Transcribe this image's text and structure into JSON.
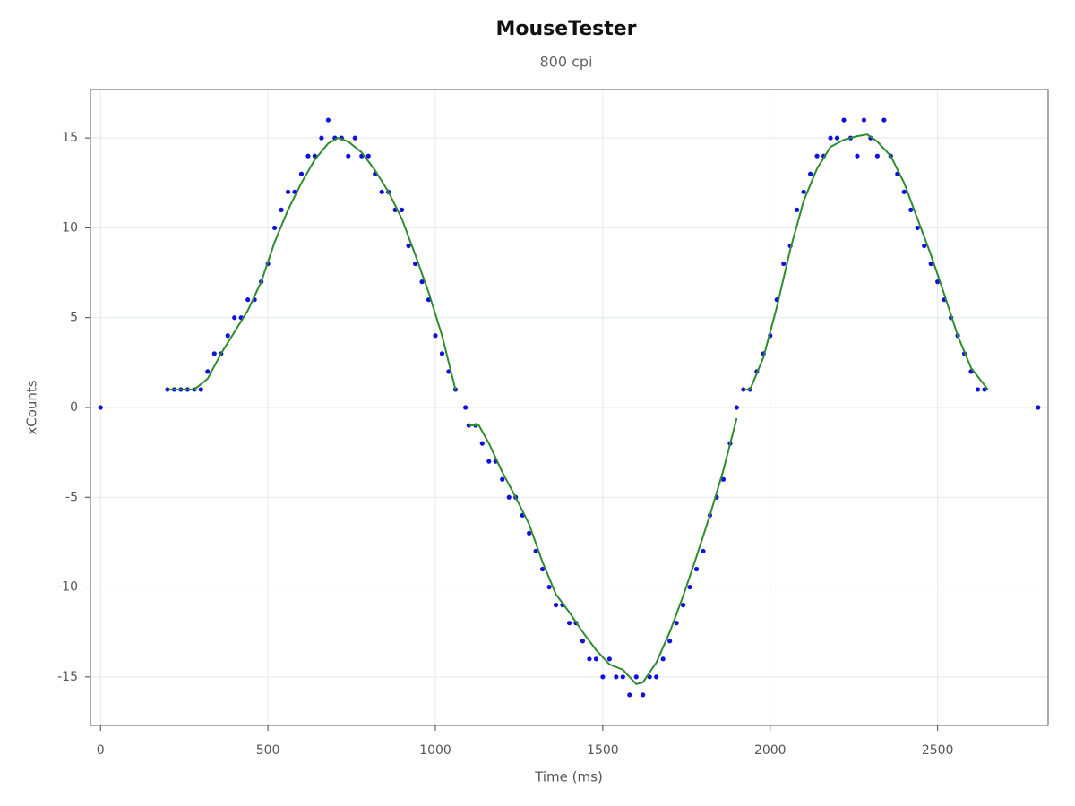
{
  "chart_data": {
    "type": "scatter",
    "title": "MouseTester",
    "subtitle": "800 cpi",
    "x_label": "Time (ms)",
    "y_label": "xCounts",
    "xlim": [
      -30,
      2830
    ],
    "ylim": [
      -17.7,
      17.7
    ],
    "xticks": [
      0,
      500,
      1000,
      1500,
      2000,
      2500
    ],
    "yticks": [
      -15,
      -10,
      -5,
      0,
      5,
      10,
      15
    ],
    "grid": true,
    "series": [
      {
        "type": "scatter",
        "color": "#1010e0",
        "x": [
          0,
          200,
          220,
          240,
          260,
          280,
          300,
          320,
          340,
          360,
          380,
          400,
          420,
          440,
          460,
          480,
          500,
          520,
          540,
          560,
          580,
          600,
          620,
          640,
          660,
          680,
          700,
          720,
          740,
          760,
          780,
          800,
          820,
          840,
          860,
          880,
          900,
          920,
          940,
          960,
          980,
          1000,
          1020,
          1040,
          1060,
          1090,
          1100,
          1120,
          1140,
          1160,
          1180,
          1200,
          1220,
          1240,
          1260,
          1280,
          1300,
          1320,
          1340,
          1360,
          1380,
          1400,
          1420,
          1440,
          1460,
          1480,
          1500,
          1520,
          1540,
          1560,
          1580,
          1600,
          1620,
          1640,
          1660,
          1680,
          1700,
          1720,
          1740,
          1760,
          1780,
          1800,
          1820,
          1840,
          1860,
          1880,
          1900,
          1920,
          1940,
          1960,
          1980,
          2000,
          2020,
          2040,
          2060,
          2080,
          2100,
          2120,
          2140,
          2160,
          2180,
          2200,
          2220,
          2240,
          2260,
          2280,
          2300,
          2320,
          2340,
          2360,
          2380,
          2400,
          2420,
          2440,
          2460,
          2480,
          2500,
          2520,
          2540,
          2560,
          2580,
          2600,
          2620,
          2640,
          2800
        ],
        "values": [
          0,
          1,
          1,
          1,
          1,
          1,
          1,
          2,
          3,
          3,
          4,
          5,
          5,
          6,
          6,
          7,
          8,
          10,
          11,
          12,
          12,
          13,
          14,
          14,
          15,
          16,
          15,
          15,
          14,
          15,
          14,
          14,
          13,
          12,
          12,
          11,
          11,
          9,
          8,
          7,
          6,
          4,
          3,
          2,
          1,
          0,
          -1,
          -1,
          -2,
          -3,
          -3,
          -4,
          -5,
          -5,
          -6,
          -7,
          -8,
          -9,
          -10,
          -11,
          -11,
          -12,
          -12,
          -13,
          -14,
          -14,
          -15,
          -14,
          -15,
          -15,
          -16,
          -15,
          -16,
          -15,
          -15,
          -14,
          -13,
          -12,
          -11,
          -10,
          -9,
          -8,
          -6,
          -5,
          -4,
          -2,
          0,
          1,
          1,
          2,
          3,
          4,
          6,
          8,
          9,
          11,
          12,
          13,
          14,
          14,
          15,
          15,
          16,
          15,
          14,
          16,
          15,
          14,
          16,
          14,
          13,
          12,
          11,
          10,
          9,
          8,
          7,
          6,
          5,
          4,
          3,
          2,
          1,
          1,
          0
        ]
      },
      {
        "type": "line",
        "color": "#2e8b2e",
        "x": [
          200,
          240,
          280,
          320,
          360,
          400,
          440,
          480,
          520,
          560,
          600,
          640,
          680,
          710,
          740,
          780,
          820,
          860,
          900,
          940,
          980,
          1020,
          1060,
          null,
          1100,
          1130,
          1160,
          1200,
          1240,
          1280,
          1320,
          1360,
          1400,
          1440,
          1480,
          1520,
          1560,
          1600,
          1620,
          1660,
          1700,
          1740,
          1780,
          1820,
          1860,
          1900,
          null,
          1920,
          1940,
          1980,
          2020,
          2060,
          2100,
          2140,
          2180,
          2220,
          2260,
          2290,
          2320,
          2360,
          2400,
          2440,
          2480,
          2520,
          2560,
          2600,
          2650
        ],
        "values": [
          1,
          1,
          1,
          1.6,
          3,
          4.2,
          5.4,
          7,
          9.2,
          11,
          12.5,
          13.8,
          14.7,
          15,
          14.8,
          14.2,
          13.2,
          12,
          10.5,
          8.5,
          6.4,
          4,
          1,
          null,
          -1,
          -1,
          -2,
          -3.6,
          -5,
          -6.5,
          -8.6,
          -10.4,
          -11.4,
          -12.5,
          -13.5,
          -14.3,
          -14.6,
          -15.4,
          -15.3,
          -14.2,
          -12.5,
          -10.5,
          -8.3,
          -6,
          -3.5,
          -0.6,
          null,
          1,
          1,
          2.8,
          5.6,
          8.8,
          11.5,
          13.3,
          14.5,
          14.9,
          15.1,
          15.2,
          14.8,
          14,
          12.5,
          10.5,
          8.5,
          6.3,
          4,
          2.2,
          1
        ]
      }
    ]
  }
}
